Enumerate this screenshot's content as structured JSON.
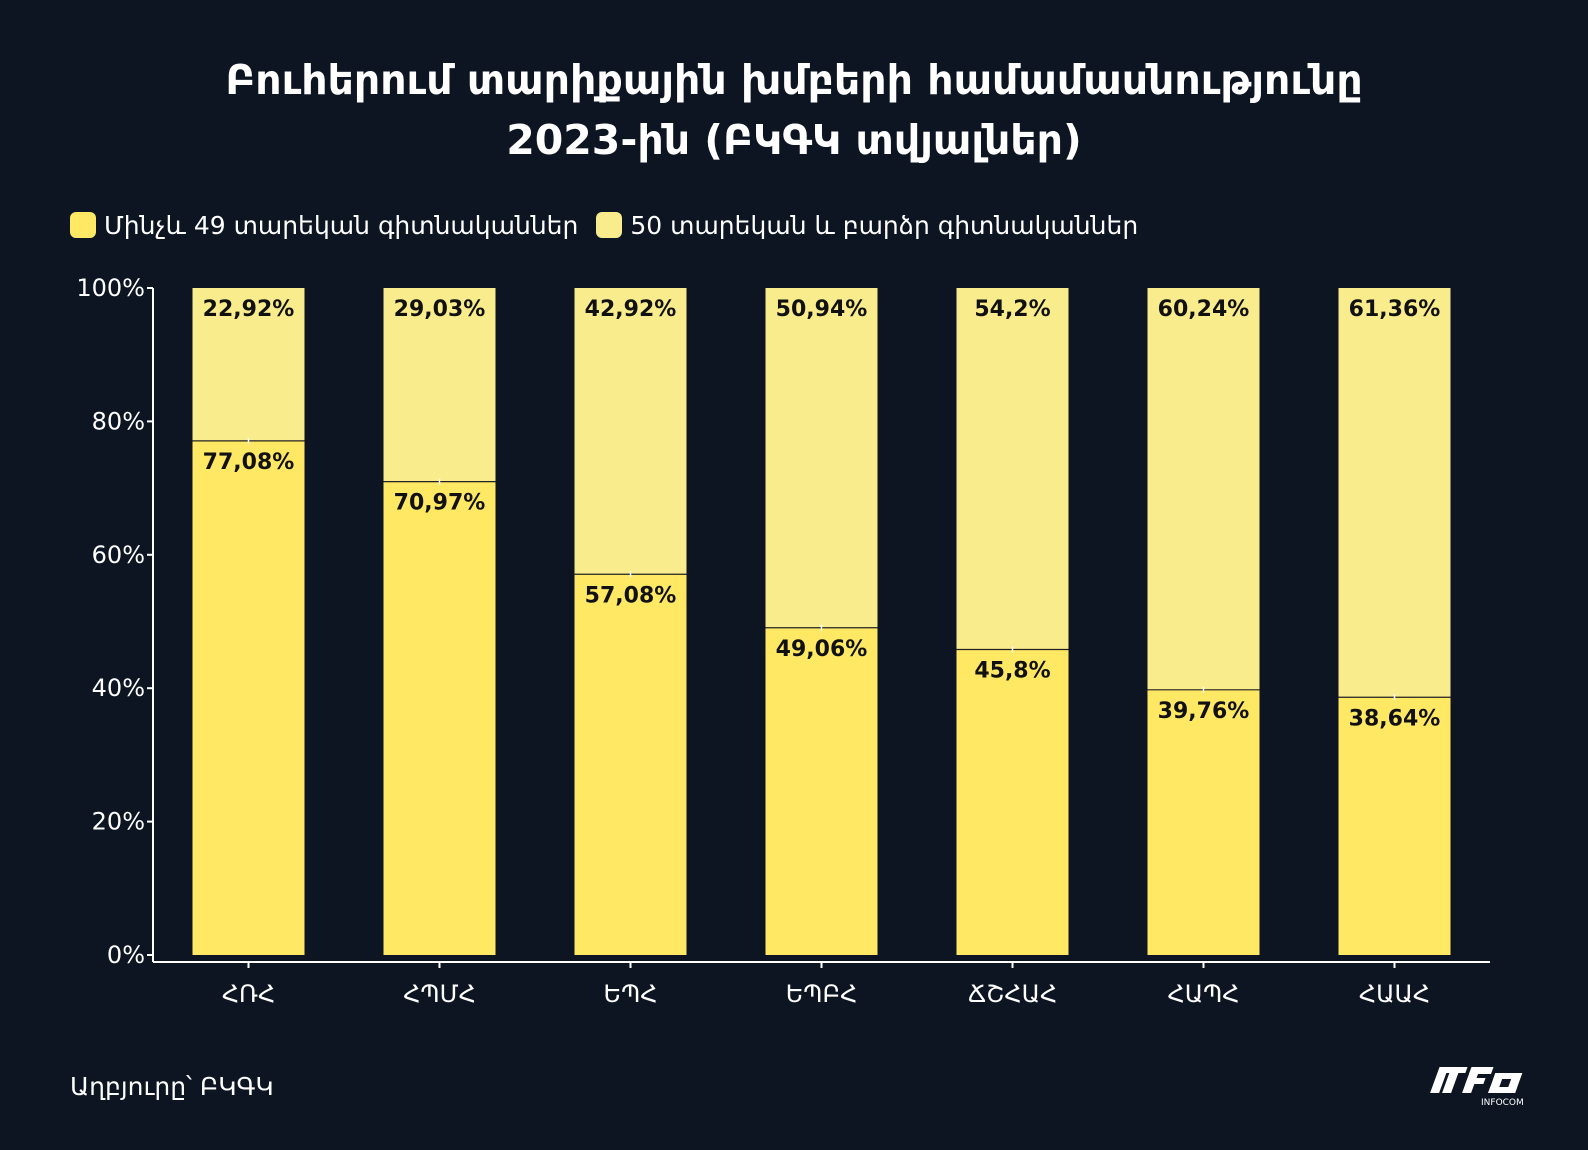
{
  "title_lines": [
    "Բուհերում տարիքային խմբերի համամասնությունը",
    "2023-ին (ԲԿԳԿ տվյալներ)"
  ],
  "source": "Աղբյուրը՝ ԲԿԳԿ",
  "logo_text": "INFOCOM",
  "colors": {
    "background": "#0d1523",
    "under49": "#ffe864",
    "over50": "#f9ec8c",
    "text": "#ffffff",
    "label": "#111111"
  },
  "chart_data": {
    "type": "bar",
    "stacked": true,
    "categories": [
      "ՀՌՀ",
      "ՀՊՄՀ",
      "ԵՊՀ",
      "ԵՊԲՀ",
      "ՃՇՀԱՀ",
      "ՀԱՊՀ",
      "ՀԱԱՀ"
    ],
    "series": [
      {
        "name": "Մինչև 49 տարեկան գիտնականներ",
        "color": "#ffe864",
        "values": [
          77.08,
          70.97,
          57.08,
          49.06,
          45.8,
          39.76,
          38.64
        ],
        "labels": [
          "77,08%",
          "70,97%",
          "57,08%",
          "49,06%",
          "45,8%",
          "39,76%",
          "38,64%"
        ]
      },
      {
        "name": "50 տարեկան և բարձր գիտնականներ",
        "color": "#f9ec8c",
        "values": [
          22.92,
          29.03,
          42.92,
          50.94,
          54.2,
          60.24,
          61.36
        ],
        "labels": [
          "22,92%",
          "29,03%",
          "42,92%",
          "50,94%",
          "54,2%",
          "60,24%",
          "61,36%"
        ]
      }
    ],
    "ylim": [
      0,
      100
    ],
    "yticks": [
      0,
      20,
      40,
      60,
      80,
      100
    ],
    "ytick_labels": [
      "0%",
      "20%",
      "40%",
      "60%",
      "80%",
      "100%"
    ],
    "legend_position": "top-left",
    "grid": false
  }
}
